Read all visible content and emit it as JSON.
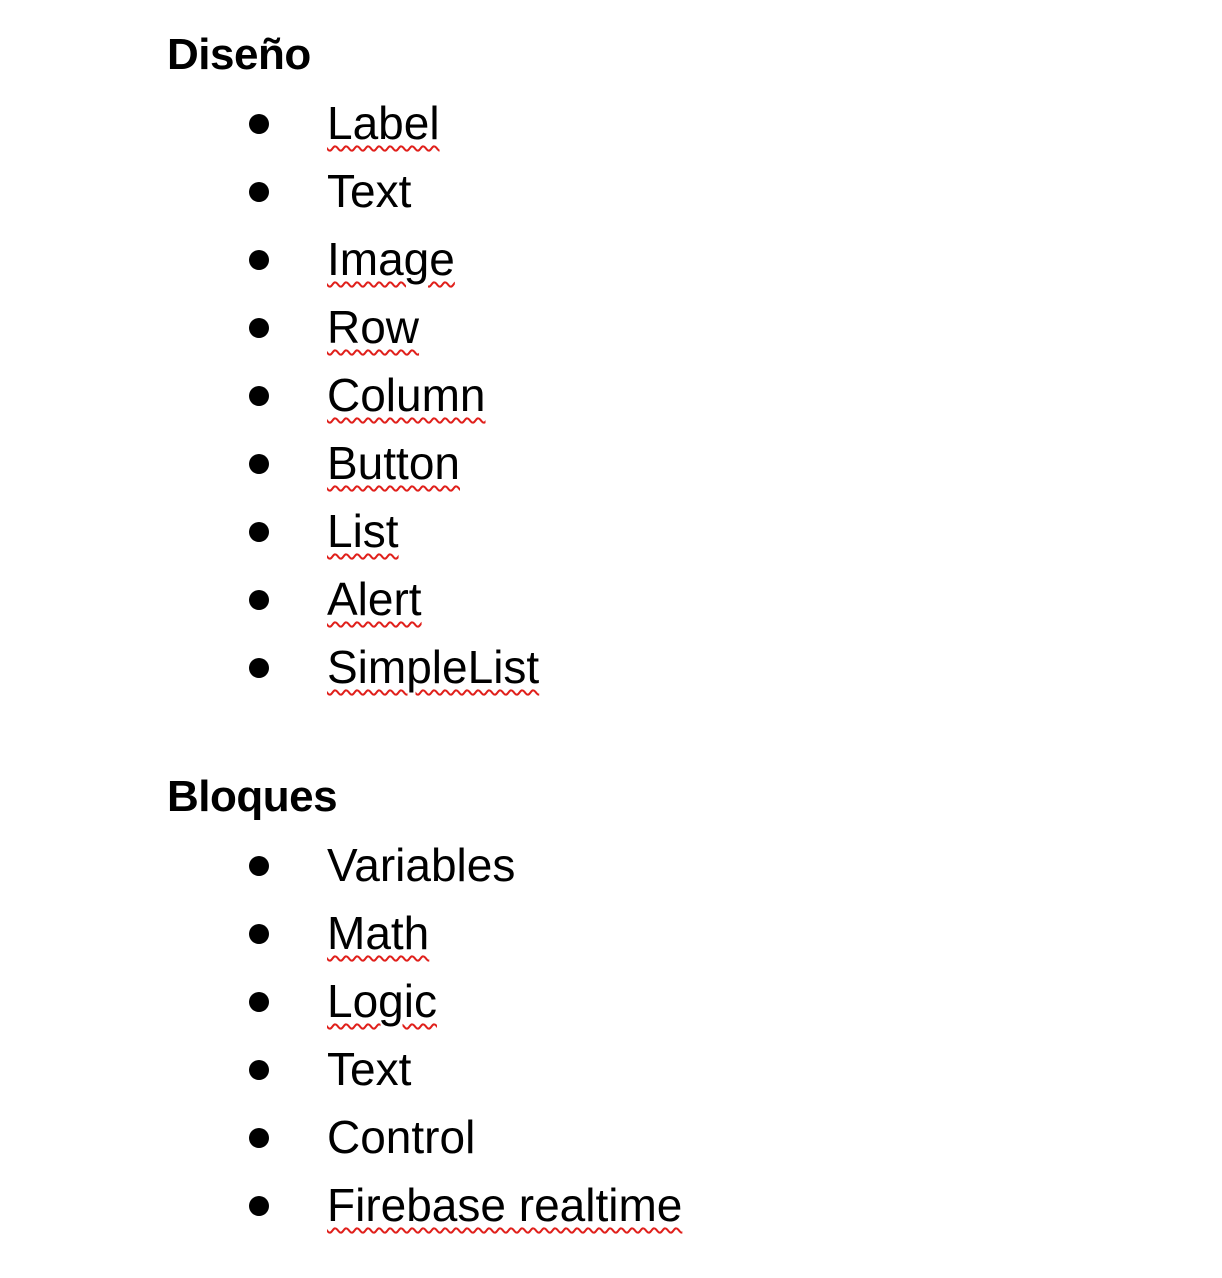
{
  "sections": [
    {
      "heading": "Diseño",
      "items": [
        {
          "label": "Label",
          "spellcheck_flag": true
        },
        {
          "label": "Text",
          "spellcheck_flag": false
        },
        {
          "label": "Image",
          "spellcheck_flag": true
        },
        {
          "label": "Row",
          "spellcheck_flag": true
        },
        {
          "label": "Column",
          "spellcheck_flag": true
        },
        {
          "label": "Button",
          "spellcheck_flag": true
        },
        {
          "label": "List",
          "spellcheck_flag": true
        },
        {
          "label": "Alert",
          "spellcheck_flag": true
        },
        {
          "label": "SimpleList",
          "spellcheck_flag": true
        }
      ]
    },
    {
      "heading": "Bloques",
      "items": [
        {
          "label": "Variables",
          "spellcheck_flag": false
        },
        {
          "label": "Math",
          "spellcheck_flag": true
        },
        {
          "label": "Logic",
          "spellcheck_flag": true
        },
        {
          "label": "Text",
          "spellcheck_flag": false
        },
        {
          "label": "Control",
          "spellcheck_flag": false
        },
        {
          "label": "Firebase realtime",
          "spellcheck_flag": true
        }
      ]
    }
  ],
  "colors": {
    "text": "#000000",
    "spellcheck_underline": "#e0201b",
    "background": "#ffffff"
  }
}
